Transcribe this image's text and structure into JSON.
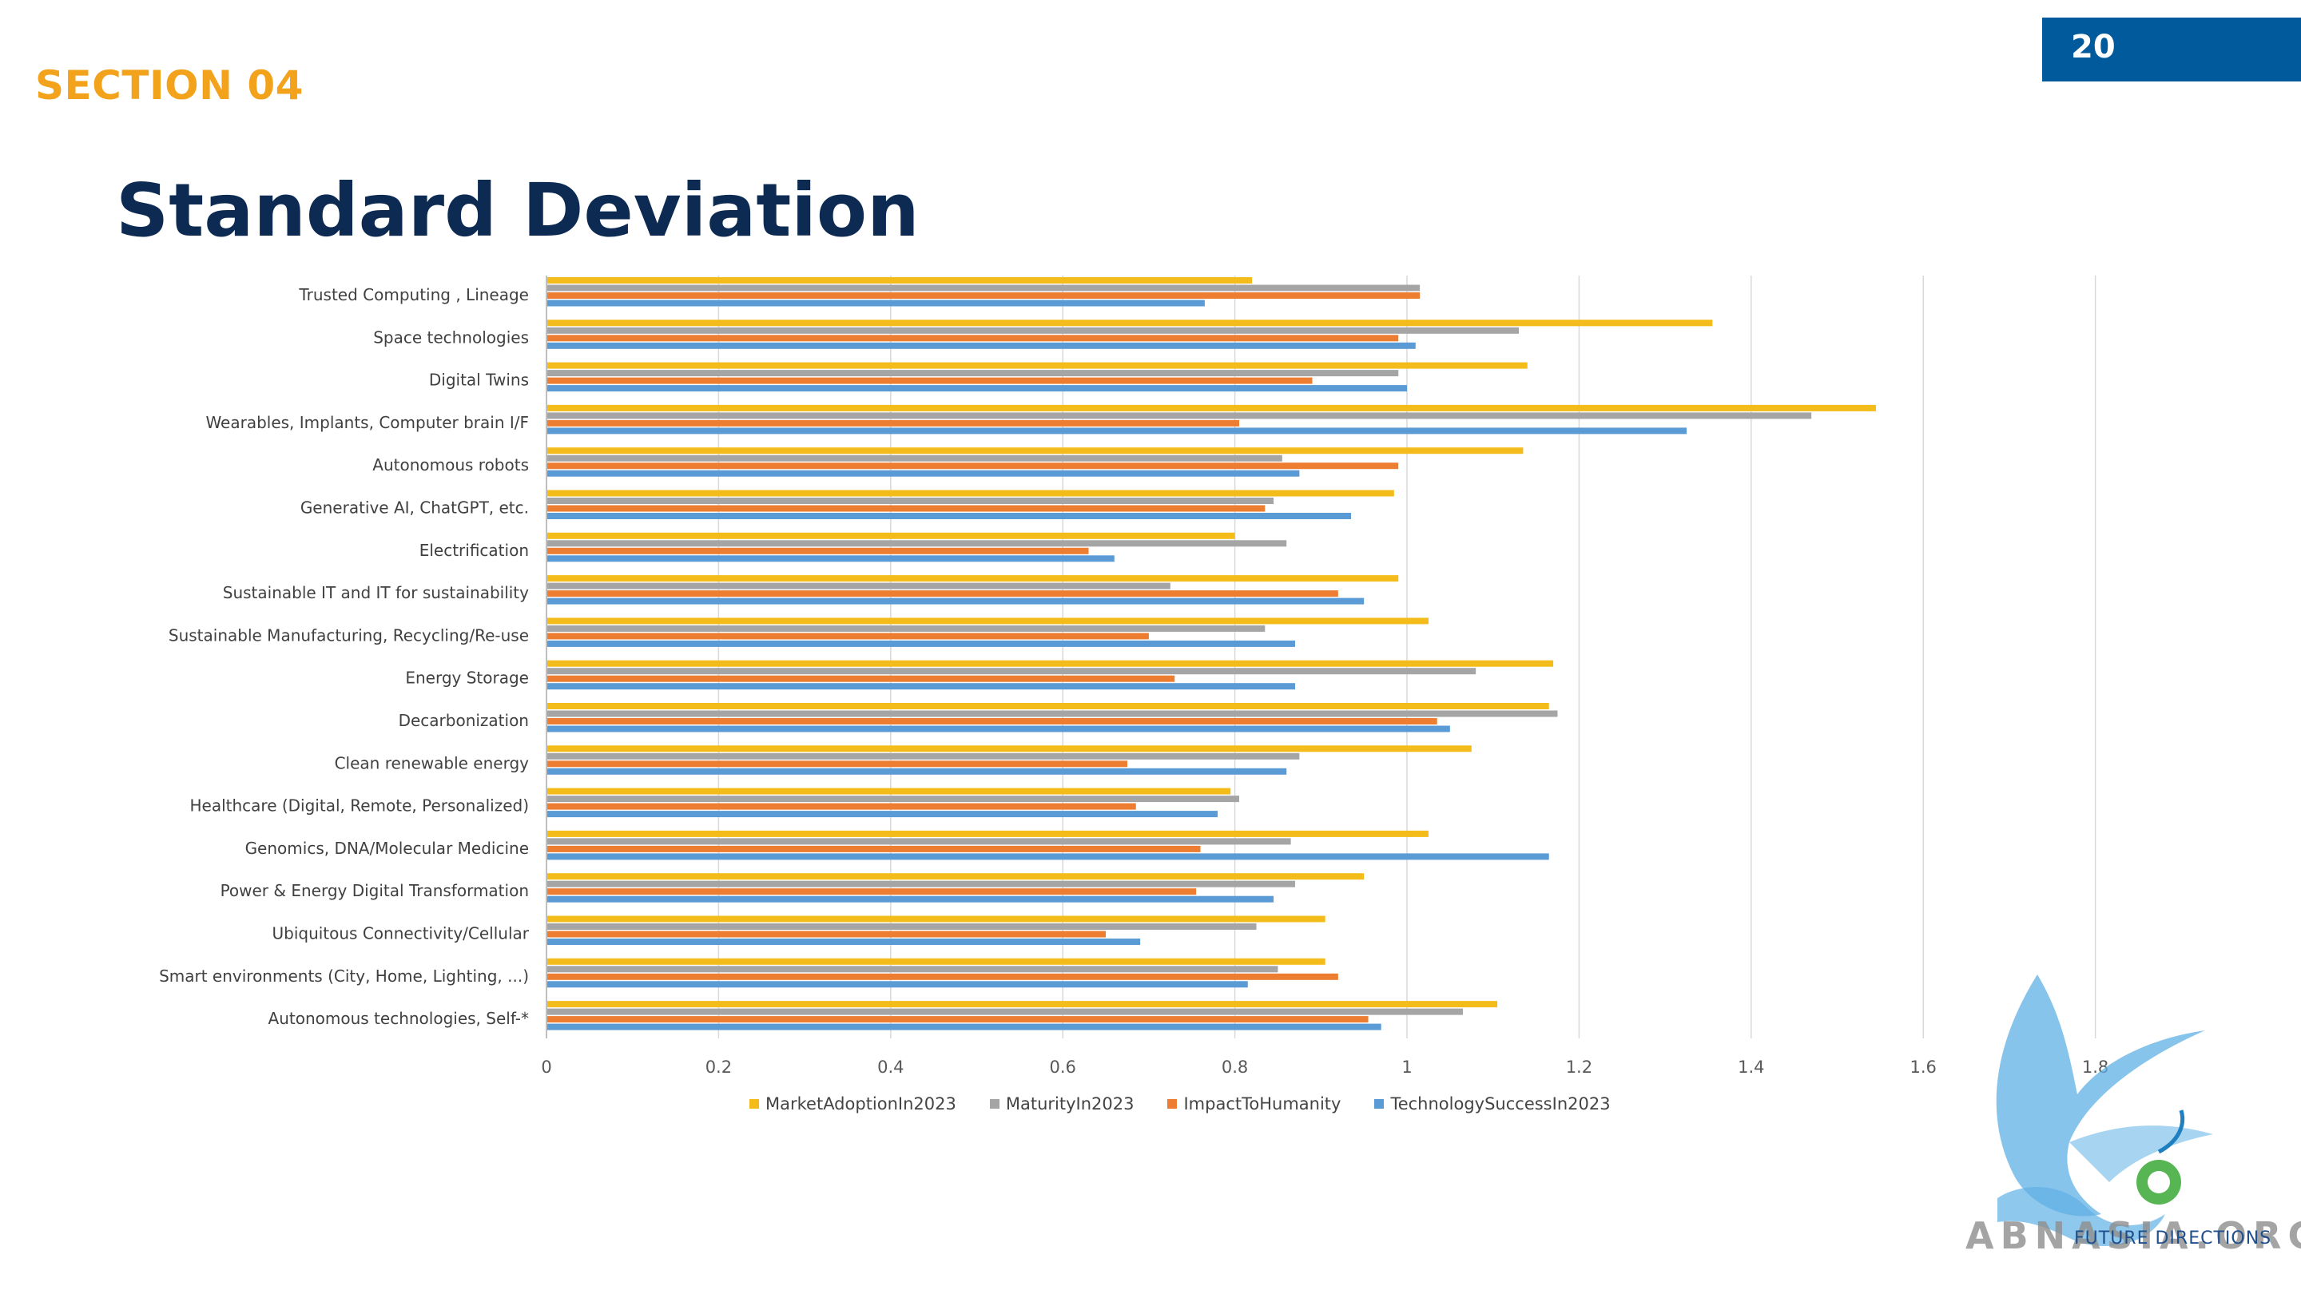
{
  "header": {
    "section": "SECTION 04",
    "title": "Standard Deviation",
    "page_number": "20"
  },
  "logo": {
    "text": "ABNASIA.ORG",
    "subtext": "FUTURE DIRECTIONS"
  },
  "colors": {
    "section_label": "#f2a31b",
    "title": "#0d2b52",
    "badge": "#005a9c"
  },
  "chart_data": {
    "type": "bar",
    "orientation": "horizontal",
    "title": "",
    "xlabel": "",
    "ylabel": "",
    "xlim": [
      0,
      1.8
    ],
    "x_ticks": [
      "0",
      "0.2",
      "0.4",
      "0.6",
      "0.8",
      "1",
      "1.2",
      "1.4",
      "1.6",
      "1.8"
    ],
    "grid": "vertical",
    "legend": "bottom",
    "categories": [
      "Trusted Computing , Lineage",
      "Space technologies",
      "Digital Twins",
      "Wearables,  Implants, Computer brain I/F",
      "Autonomous robots",
      "Generative AI, ChatGPT, etc.",
      "Electrification",
      "Sustainable IT and IT for sustainability",
      "Sustainable Manufacturing, Recycling/Re-use",
      "Energy Storage",
      "Decarbonization",
      "Clean renewable energy",
      "Healthcare (Digital, Remote, Personalized)",
      "Genomics, DNA/Molecular Medicine",
      "Power & Energy Digital Transformation",
      "Ubiquitous Connectivity/Cellular",
      "Smart environments (City, Home, Lighting, ...)",
      "Autonomous technologies, Self-*"
    ],
    "series": [
      {
        "name": "MarketAdoptionIn2023",
        "color": "#f4bc1a",
        "values": [
          0.82,
          1.355,
          1.14,
          1.545,
          1.135,
          0.985,
          0.8,
          0.99,
          1.025,
          1.17,
          1.165,
          1.075,
          0.795,
          1.025,
          0.95,
          0.905,
          0.905,
          1.105
        ]
      },
      {
        "name": "MaturityIn2023",
        "color": "#a5a5a5",
        "values": [
          1.015,
          1.13,
          0.99,
          1.47,
          0.855,
          0.845,
          0.86,
          0.725,
          0.835,
          1.08,
          1.175,
          0.875,
          0.805,
          0.865,
          0.87,
          0.825,
          0.85,
          1.065
        ]
      },
      {
        "name": "ImpactToHumanity",
        "color": "#ed7d31",
        "values": [
          1.015,
          0.99,
          0.89,
          0.805,
          0.99,
          0.835,
          0.63,
          0.92,
          0.7,
          0.73,
          1.035,
          0.675,
          0.685,
          0.76,
          0.755,
          0.65,
          0.92,
          0.955
        ]
      },
      {
        "name": "TechnologySuccessIn2023",
        "color": "#5b9bd5",
        "values": [
          0.765,
          1.01,
          1.0,
          1.325,
          0.875,
          0.935,
          0.66,
          0.95,
          0.87,
          0.87,
          1.05,
          0.86,
          0.78,
          1.165,
          0.845,
          0.69,
          0.815,
          0.97
        ]
      }
    ]
  }
}
